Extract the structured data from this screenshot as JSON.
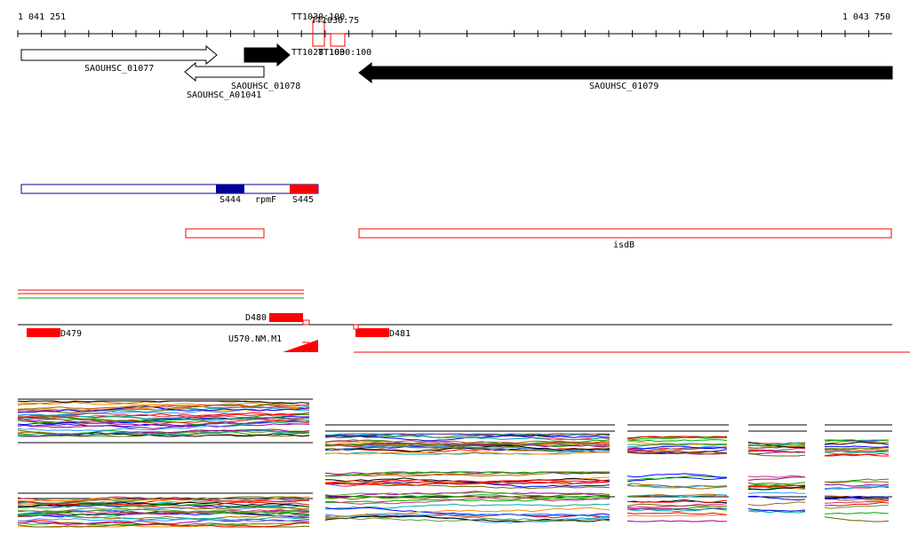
{
  "ruler": {
    "start_label": "1 041 251",
    "end_label": "1 043 750"
  },
  "genes": [
    {
      "id": "SAOUHSC_01077",
      "label": "SAOUHSC_01077",
      "strand": "+",
      "filled": false
    },
    {
      "id": "SAOUHSC_01078",
      "label": "SAOUHSC_01078",
      "strand": "-",
      "filled": false
    },
    {
      "id": "SAOUHSC_A01041",
      "label": "SAOUHSC_A01041",
      "strand": "+",
      "filled": true
    },
    {
      "id": "SAOUHSC_01079",
      "label": "SAOUHSC_01079",
      "strand": "-",
      "filled": true
    }
  ],
  "terminators": [
    {
      "label": "TT1030:100"
    },
    {
      "label": "TT1030:75"
    },
    {
      "label": "TT1028:100"
    },
    {
      "label": "TT1030:100"
    }
  ],
  "rna_features": [
    {
      "label": "S444",
      "color": "#000099"
    },
    {
      "label": "rpmF",
      "color": "#ffffff"
    },
    {
      "label": "S445",
      "color": "#ff0000"
    }
  ],
  "operon_label": "isdB",
  "segments": [
    {
      "label": "D479"
    },
    {
      "label": "D480"
    },
    {
      "label": "D481"
    },
    {
      "label": "U570.NM.M1"
    }
  ],
  "colors": {
    "red": "#ff0000",
    "blue": "#000099",
    "green": "#00aa00",
    "black": "#000000"
  }
}
